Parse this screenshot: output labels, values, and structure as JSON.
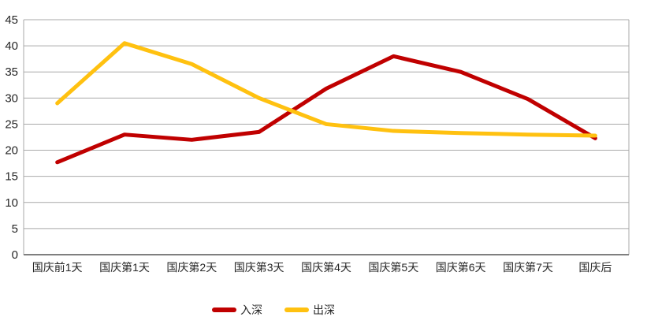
{
  "chart_data": {
    "type": "line",
    "title": "",
    "xlabel": "",
    "ylabel": "",
    "categories": [
      "国庆前1天",
      "国庆第1天",
      "国庆第2天",
      "国庆第3天",
      "国庆第4天",
      "国庆第5天",
      "国庆第6天",
      "国庆第7天",
      "国庆后"
    ],
    "series": [
      {
        "name": "入深",
        "color": "#C00000",
        "values": [
          17.7,
          23,
          22,
          23.5,
          31.8,
          38,
          35,
          29.8,
          22.3
        ]
      },
      {
        "name": "出深",
        "color": "#FFC110",
        "values": [
          29,
          40.5,
          36.5,
          30,
          25,
          23.7,
          23.3,
          23,
          22.8
        ]
      }
    ],
    "ylim": [
      0,
      45
    ],
    "y_ticks": [
      0,
      5,
      10,
      15,
      20,
      25,
      30,
      35,
      40,
      45
    ],
    "grid": "horizontal",
    "legend_position": "bottom-center",
    "colors": {
      "grid": "#A9A9A9",
      "axis": "#7F7F7F",
      "tick_text": "#262626",
      "background": "#FFFFFF"
    }
  }
}
